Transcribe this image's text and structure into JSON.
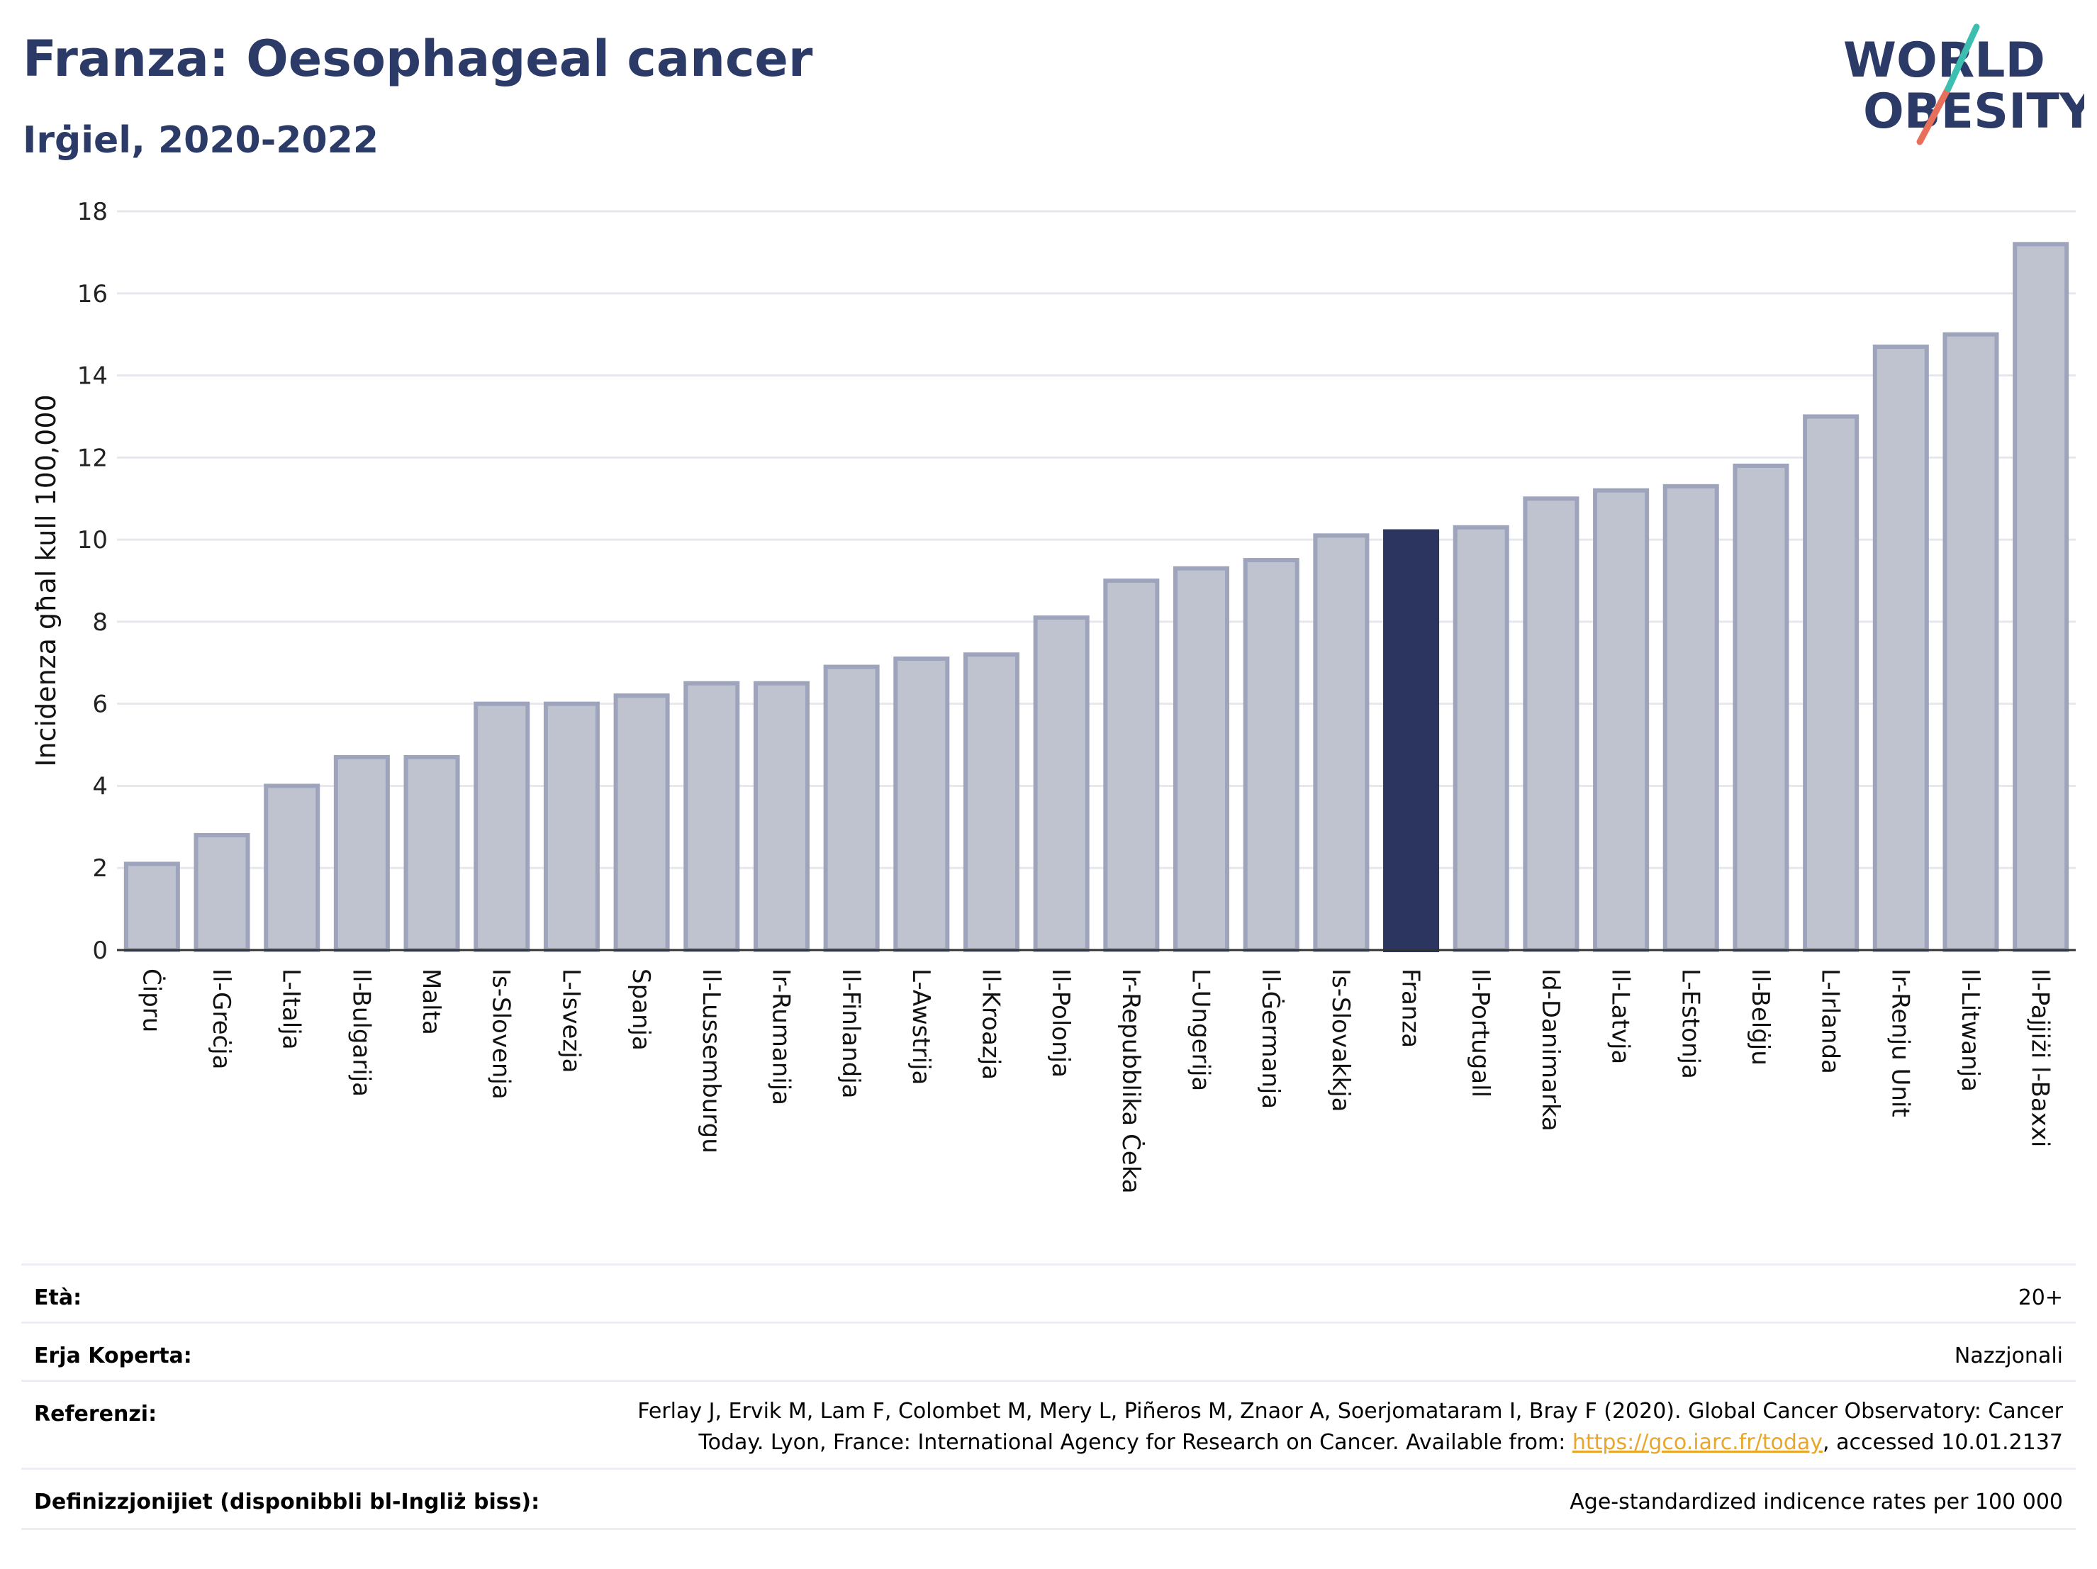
{
  "header": {
    "title": "Franza: Oesophageal cancer",
    "subtitle": "Irġiel, 2020-2022"
  },
  "logo": {
    "line1": "WORLD",
    "line2": "OBESITY"
  },
  "colors": {
    "bar_default": "#bfc3d0",
    "bar_stroke": "#9ea4bb",
    "bar_highlight": "#2b3560",
    "title": "#2b3a67",
    "link": "#e8a72a"
  },
  "chart_data": {
    "type": "bar",
    "ylabel": "Incidenza għal kull 100,000",
    "ylim": [
      0,
      18
    ],
    "yticks": [
      0,
      2,
      4,
      6,
      8,
      10,
      12,
      14,
      16,
      18
    ],
    "grid": true,
    "highlight": "Franza",
    "categories": [
      "Ċipru",
      "Il-Greċja",
      "L-Italja",
      "Il-Bulgarija",
      "Malta",
      "Is-Slovenja",
      "L-Isvezja",
      "Spanja",
      "Il-Lussemburgu",
      "Ir-Rumanija",
      "Il-Finlandja",
      "L-Awstrija",
      "Il-Kroazja",
      "Il-Polonja",
      "Ir-Repubblika Ċeka",
      "L-Ungerija",
      "Il-Ġermanja",
      "Is-Slovakkja",
      "Franza",
      "Il-Portugall",
      "Id-Danimarka",
      "Il-Latvja",
      "L-Estonja",
      "Il-Belġju",
      "L-Irlanda",
      "Ir-Renju Unit",
      "Il-Litwanja",
      "Il-Pajjiżi l-Baxxi"
    ],
    "values": [
      2.1,
      2.8,
      4.0,
      4.7,
      4.7,
      6.0,
      6.0,
      6.2,
      6.5,
      6.5,
      6.9,
      7.1,
      7.2,
      8.1,
      9.0,
      9.3,
      9.5,
      10.1,
      10.2,
      10.3,
      11.0,
      11.2,
      11.3,
      11.8,
      13.0,
      14.7,
      15.0,
      17.2
    ]
  },
  "meta": {
    "age_label": "Età:",
    "age_value": "20+",
    "area_label": "Erja Koperta:",
    "area_value": "Nazzjonali",
    "ref_label": "Referenzi:",
    "ref_line1": "Ferlay J, Ervik M, Lam F, Colombet M, Mery L, Piñeros M, Znaor A, Soerjomataram I, Bray F (2020). Global Cancer Observatory: Cancer",
    "ref_line2_pre": "Today. Lyon, France: International Agency for Research on Cancer. Available from: ",
    "ref_link": "https://gco.iarc.fr/today",
    "ref_line2_post": ", accessed 10.01.2137",
    "def_label": "Definizzjonijiet (disponibbli bl-Ingliż biss):",
    "def_value": "Age-standardized indicence rates per 100 000"
  }
}
